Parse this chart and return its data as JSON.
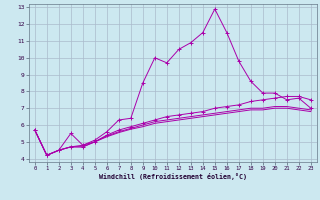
{
  "title": "",
  "xlabel": "Windchill (Refroidissement éolien,°C)",
  "ylabel": "",
  "background_color": "#cce8f0",
  "grid_color": "#aabbcc",
  "line_color": "#aa00aa",
  "xlim": [
    -0.5,
    23.5
  ],
  "ylim": [
    3.8,
    13.2
  ],
  "xticks": [
    0,
    1,
    2,
    3,
    4,
    5,
    6,
    7,
    8,
    9,
    10,
    11,
    12,
    13,
    14,
    15,
    16,
    17,
    18,
    19,
    20,
    21,
    22,
    23
  ],
  "yticks": [
    4,
    5,
    6,
    7,
    8,
    9,
    10,
    11,
    12,
    13
  ],
  "lines": [
    {
      "x": [
        0,
        1,
        2,
        3,
        4,
        5,
        6,
        7,
        8,
        9,
        10,
        11,
        12,
        13,
        14,
        15,
        16,
        17,
        18,
        19,
        20,
        21,
        22,
        23
      ],
      "y": [
        5.7,
        4.2,
        4.5,
        5.5,
        4.8,
        5.1,
        5.6,
        6.3,
        6.4,
        8.5,
        10.0,
        9.7,
        10.5,
        10.9,
        11.5,
        12.9,
        11.5,
        9.8,
        8.6,
        7.9,
        7.9,
        7.5,
        7.6,
        7.0
      ],
      "marker": "+"
    },
    {
      "x": [
        0,
        1,
        2,
        3,
        4,
        5,
        6,
        7,
        8,
        9,
        10,
        11,
        12,
        13,
        14,
        15,
        16,
        17,
        18,
        19,
        20,
        21,
        22,
        23
      ],
      "y": [
        5.7,
        4.2,
        4.5,
        4.7,
        4.7,
        5.0,
        5.4,
        5.7,
        5.9,
        6.1,
        6.3,
        6.5,
        6.6,
        6.7,
        6.8,
        7.0,
        7.1,
        7.2,
        7.4,
        7.5,
        7.6,
        7.7,
        7.7,
        7.5
      ],
      "marker": "+"
    },
    {
      "x": [
        0,
        1,
        2,
        3,
        4,
        5,
        6,
        7,
        8,
        9,
        10,
        11,
        12,
        13,
        14,
        15,
        16,
        17,
        18,
        19,
        20,
        21,
        22,
        23
      ],
      "y": [
        5.7,
        4.2,
        4.5,
        4.7,
        4.8,
        5.0,
        5.35,
        5.6,
        5.8,
        6.0,
        6.2,
        6.3,
        6.4,
        6.5,
        6.6,
        6.7,
        6.8,
        6.9,
        7.0,
        7.0,
        7.1,
        7.1,
        7.0,
        6.9
      ],
      "marker": null
    },
    {
      "x": [
        0,
        1,
        2,
        3,
        4,
        5,
        6,
        7,
        8,
        9,
        10,
        11,
        12,
        13,
        14,
        15,
        16,
        17,
        18,
        19,
        20,
        21,
        22,
        23
      ],
      "y": [
        5.7,
        4.2,
        4.5,
        4.7,
        4.7,
        5.0,
        5.3,
        5.55,
        5.75,
        5.9,
        6.1,
        6.2,
        6.3,
        6.4,
        6.5,
        6.6,
        6.7,
        6.8,
        6.9,
        6.9,
        7.0,
        7.0,
        6.9,
        6.8
      ],
      "marker": null
    }
  ]
}
